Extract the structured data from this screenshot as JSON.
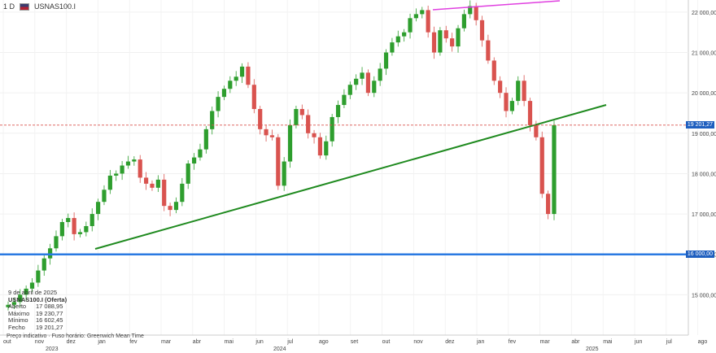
{
  "toolbar": {
    "timeframe": "1 D",
    "symbol": "USNAS100.I"
  },
  "info": {
    "date": "9 de abril de 2025",
    "title": "USNAS100.I (Oferta)",
    "rows": [
      {
        "label": "Aberto",
        "value": "17 088,95"
      },
      {
        "label": "Máximo",
        "value": "19 230,77"
      },
      {
        "label": "Mínimo",
        "value": "16 602,45"
      },
      {
        "label": "Fecho",
        "value": "19 201,27"
      }
    ],
    "footer": "Preço indicativo · Fuso horário: Greenwich Mean Time"
  },
  "badges": {
    "last": "19 201,27",
    "level": "16 000,00"
  },
  "colors": {
    "up": "#2e9e2e",
    "down": "#d9534f",
    "trend": "#1f8a1f",
    "resistance": "#e040e0",
    "support": "#2a7ae2",
    "last": "#1f5fbf"
  },
  "chart_data": {
    "type": "candlestick",
    "ylim": [
      14000,
      22300
    ],
    "y_ticks": [
      "15 000,00",
      "16 000,00",
      "17 000,00",
      "18 000,00",
      "19 000,00",
      "20 000,00",
      "21 000,00",
      "22 000,00"
    ],
    "y_tick_values": [
      15000,
      16000,
      17000,
      18000,
      19000,
      20000,
      21000,
      22000
    ],
    "x_ticks": [
      "out",
      "nov",
      "dez",
      "jan",
      "fev",
      "mar",
      "abr",
      "mai",
      "jun",
      "jul",
      "ago",
      "set",
      "out",
      "nov",
      "dez",
      "jan",
      "fev",
      "mar",
      "abr",
      "mai",
      "jun",
      "jul",
      "ago"
    ],
    "year_labels": [
      "2023",
      "2024",
      "2025"
    ],
    "close_series": [
      14750,
      14820,
      15000,
      15150,
      15300,
      15600,
      15900,
      16150,
      16450,
      16800,
      16900,
      16500,
      16550,
      16700,
      17000,
      17300,
      17600,
      17950,
      18000,
      18200,
      18300,
      18350,
      17900,
      17750,
      17650,
      17850,
      17200,
      17100,
      17300,
      17750,
      18250,
      18400,
      18600,
      19100,
      19550,
      19900,
      20100,
      20300,
      20400,
      20650,
      20200,
      19600,
      19100,
      18950,
      18900,
      17700,
      18300,
      19200,
      19600,
      19450,
      19000,
      18900,
      18450,
      18800,
      19400,
      19700,
      19950,
      20200,
      20350,
      20500,
      20000,
      20300,
      20600,
      21000,
      21250,
      21400,
      21500,
      21850,
      21950,
      22050,
      21500,
      21000,
      21550,
      21350,
      21150,
      21600,
      21950,
      22150,
      21800,
      21300,
      20800,
      20300,
      20000,
      19550,
      19800,
      20300,
      19800,
      19200,
      18900,
      17500,
      17000,
      19201
    ],
    "last": 19201.27,
    "support_level": 16000,
    "last_price_line": 19201.27
  }
}
